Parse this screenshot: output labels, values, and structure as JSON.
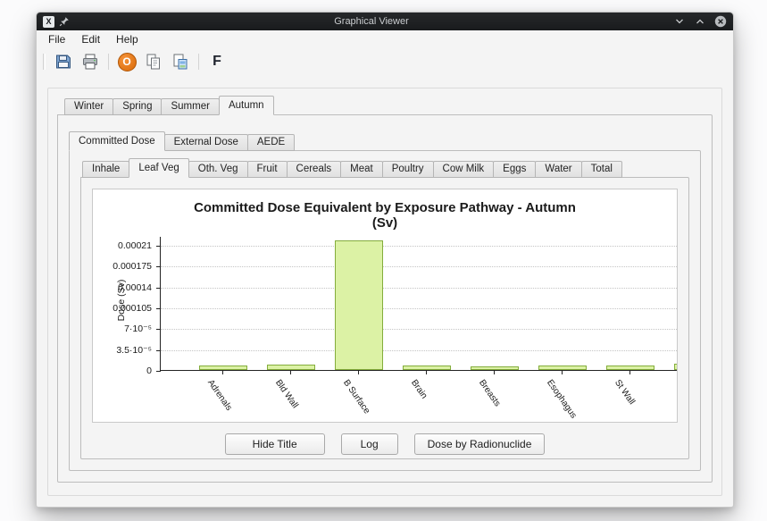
{
  "window": {
    "title": "Graphical Viewer",
    "app_icon_label": "X"
  },
  "menu_bar": {
    "items": [
      "File",
      "Edit",
      "Help"
    ]
  },
  "toolbar": {
    "font_label": "F",
    "power_label": "O",
    "icons": [
      "save-floppy",
      "printer",
      "power-orange",
      "copy",
      "copy-special",
      "font-f"
    ]
  },
  "tabs": {
    "seasons": {
      "items": [
        "Winter",
        "Spring",
        "Summer",
        "Autumn"
      ],
      "active": "Autumn"
    },
    "dose_types": {
      "items": [
        "Committed Dose",
        "External Dose",
        "AEDE"
      ],
      "active": "Committed Dose"
    },
    "pathways": {
      "items": [
        "Inhale",
        "Leaf Veg",
        "Oth. Veg",
        "Fruit",
        "Cereals",
        "Meat",
        "Poultry",
        "Cow Milk",
        "Eggs",
        "Water",
        "Total"
      ],
      "active": "Leaf Veg"
    }
  },
  "chart_data": {
    "type": "bar",
    "title": "Committed Dose Equivalent by Exposure Pathway - Autumn",
    "subtitle": "(Sv)",
    "ylabel": "Dose (Sv)",
    "categories": [
      "Adrenals",
      "Bld Wall",
      "B Surface",
      "Brain",
      "Breasts",
      "Esophagus",
      "St Wall",
      ""
    ],
    "values": [
      8e-06,
      9e-06,
      0.000217,
      7e-06,
      6e-06,
      8e-06,
      8e-06,
      1e-05
    ],
    "ytick_values": [
      0,
      3.5e-05,
      7e-05,
      0.000105,
      0.00014,
      0.000175,
      0.00021
    ],
    "ytick_labels": [
      "0",
      "3.5·10⁻⁵",
      "7·10⁻⁵",
      "0.000105",
      "0.00014",
      "0.000175",
      "0.00021"
    ],
    "ylim": [
      0,
      0.000225
    ],
    "grid": "dotted-horizontal",
    "legend": false,
    "bar_fill": "#dcf2a5",
    "bar_border": "#84ad3c"
  },
  "action_buttons": {
    "hide_title": "Hide Title",
    "log": "Log",
    "dose_by_radionuclide": "Dose by Radionuclide"
  }
}
